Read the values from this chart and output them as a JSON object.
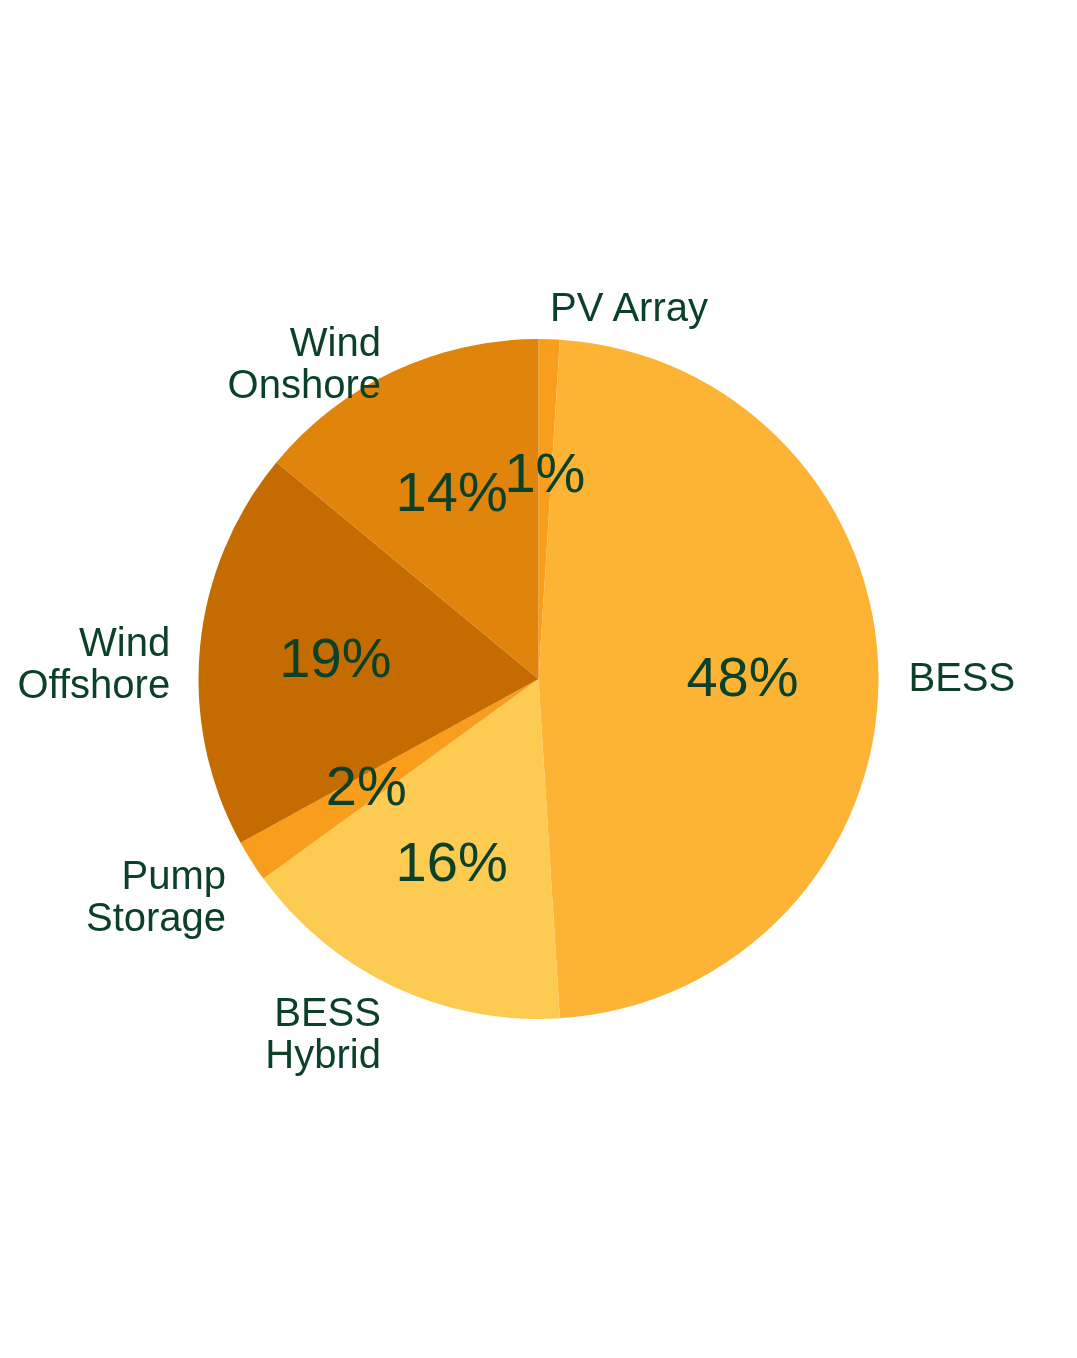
{
  "chart_data": {
    "type": "pie",
    "categories": [
      "PV Array",
      "BESS",
      "BESS Hybrid",
      "Pump Storage",
      "Wind Offshore",
      "Wind Onshore"
    ],
    "values": [
      1,
      48,
      16,
      2,
      19,
      14
    ],
    "colors": [
      "#f99d1c",
      "#fdb434",
      "#fdcb52",
      "#f99d1c",
      "#c46c00",
      "#e0840c"
    ],
    "value_labels": [
      "1%",
      "48%",
      "16%",
      "2%",
      "19%",
      "14%"
    ]
  }
}
